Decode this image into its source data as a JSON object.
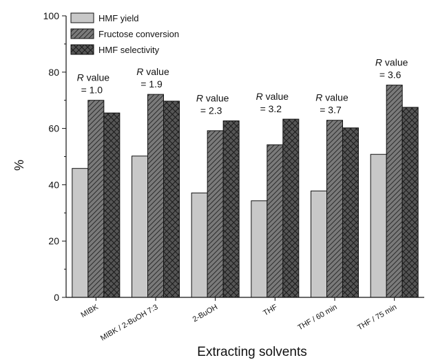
{
  "chart_data": {
    "type": "bar",
    "xlabel": "Extracting solvents",
    "ylabel": "%",
    "ylim": [
      0,
      100
    ],
    "yticks": [
      0,
      20,
      40,
      60,
      80,
      100
    ],
    "grid": false,
    "legend_position": "top-left",
    "categories": [
      "MIBK",
      "MIBK / 2-BuOH 7:3",
      "2-BuOH",
      "THF",
      "THF / 60 min",
      "THF / 75 min"
    ],
    "series": [
      {
        "name": "HMF yield",
        "values": [
          45.8,
          50.2,
          37.1,
          34.3,
          37.8,
          50.8
        ],
        "color": "#c8c8c8",
        "pattern": "solid"
      },
      {
        "name": "Fructose conversion",
        "values": [
          70.0,
          72.1,
          59.2,
          54.2,
          62.9,
          75.4
        ],
        "color": "#6e6e6e",
        "pattern": "diagonal-hatch"
      },
      {
        "name": "HMF selectivity",
        "values": [
          65.5,
          69.7,
          62.7,
          63.3,
          60.2,
          67.5
        ],
        "color": "#3a3a3a",
        "pattern": "cross-hatch"
      }
    ],
    "annotations": [
      {
        "category": "MIBK",
        "italic": "R",
        "line1": " value",
        "line2": "= 1.0"
      },
      {
        "category": "MIBK / 2-BuOH 7:3",
        "italic": "R",
        "line1": " value",
        "line2": "= 1.9"
      },
      {
        "category": "2-BuOH",
        "italic": "R",
        "line1": " value",
        "line2": "= 2.3"
      },
      {
        "category": "THF",
        "italic": "R",
        "line1": " value",
        "line2": "= 3.2"
      },
      {
        "category": "THF / 60 min",
        "italic": "R",
        "line1": " value",
        "line2": "= 3.7"
      },
      {
        "category": "THF / 75 min",
        "italic": "R",
        "line1": " value",
        "line2": "= 3.6"
      }
    ]
  }
}
